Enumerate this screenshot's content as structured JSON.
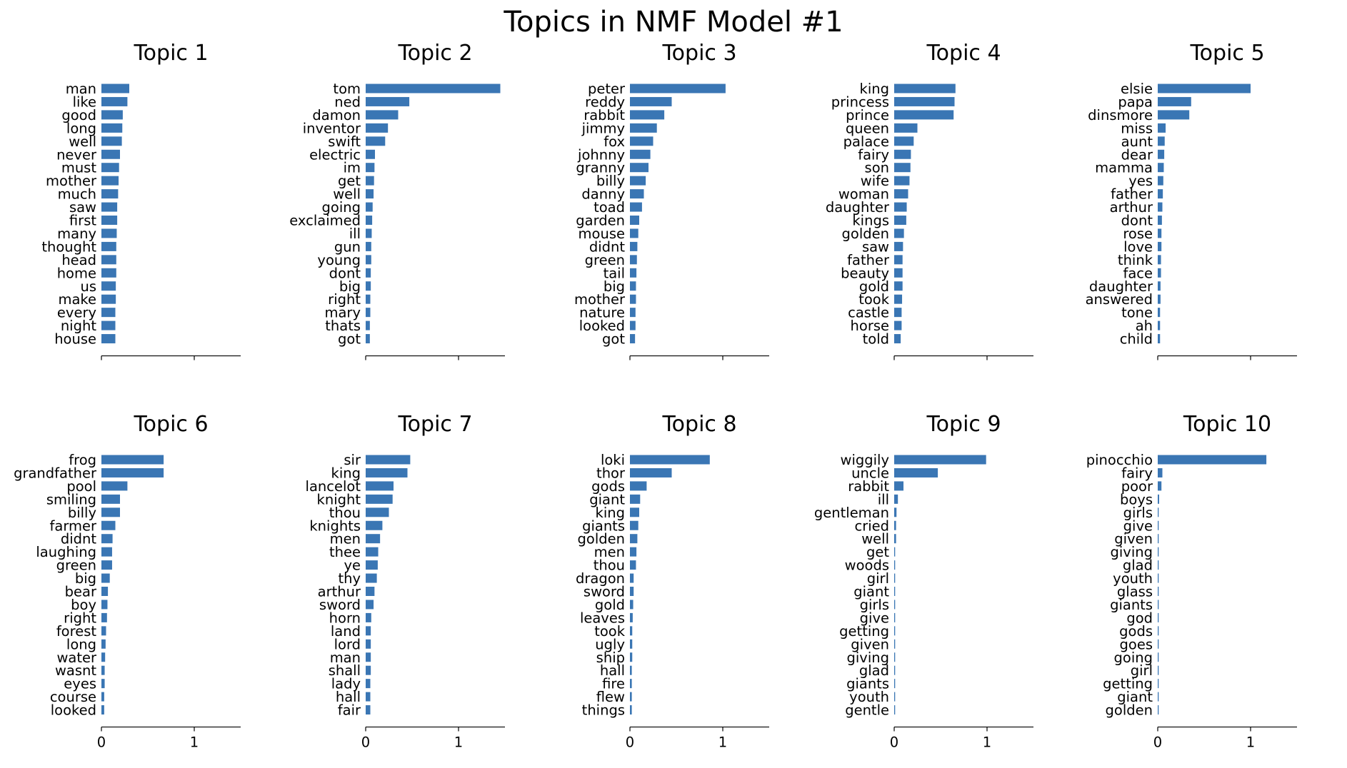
{
  "figure": {
    "title": "Topics in NMF Model #1"
  },
  "chart_data": [
    {
      "type": "bar",
      "orientation": "horizontal",
      "title": "Topic 1",
      "xlim": [
        0,
        1.5
      ],
      "xticks": [
        "0",
        "1"
      ],
      "categories": [
        "man",
        "like",
        "good",
        "long",
        "well",
        "never",
        "must",
        "mother",
        "much",
        "saw",
        "first",
        "many",
        "thought",
        "head",
        "home",
        "us",
        "make",
        "every",
        "night",
        "house"
      ],
      "values": [
        0.3,
        0.28,
        0.23,
        0.225,
        0.22,
        0.2,
        0.19,
        0.185,
        0.18,
        0.17,
        0.17,
        0.165,
        0.16,
        0.16,
        0.16,
        0.155,
        0.155,
        0.15,
        0.15,
        0.15
      ]
    },
    {
      "type": "bar",
      "orientation": "horizontal",
      "title": "Topic 2",
      "xlim": [
        0,
        1.5
      ],
      "xticks": [
        "0",
        "1"
      ],
      "categories": [
        "tom",
        "ned",
        "damon",
        "inventor",
        "swift",
        "electric",
        "im",
        "get",
        "well",
        "going",
        "exclaimed",
        "ill",
        "gun",
        "young",
        "dont",
        "big",
        "right",
        "mary",
        "thats",
        "got"
      ],
      "values": [
        1.45,
        0.47,
        0.35,
        0.24,
        0.21,
        0.1,
        0.095,
        0.09,
        0.085,
        0.075,
        0.07,
        0.065,
        0.06,
        0.06,
        0.055,
        0.055,
        0.05,
        0.05,
        0.045,
        0.045
      ]
    },
    {
      "type": "bar",
      "orientation": "horizontal",
      "title": "Topic 3",
      "xlim": [
        0,
        1.5
      ],
      "xticks": [
        "0",
        "1"
      ],
      "categories": [
        "peter",
        "reddy",
        "rabbit",
        "jimmy",
        "fox",
        "johnny",
        "granny",
        "billy",
        "danny",
        "toad",
        "garden",
        "mouse",
        "didnt",
        "green",
        "tail",
        "big",
        "mother",
        "nature",
        "looked",
        "got"
      ],
      "values": [
        1.03,
        0.45,
        0.37,
        0.29,
        0.25,
        0.22,
        0.2,
        0.17,
        0.15,
        0.13,
        0.1,
        0.09,
        0.08,
        0.075,
        0.07,
        0.065,
        0.065,
        0.06,
        0.06,
        0.055
      ]
    },
    {
      "type": "bar",
      "orientation": "horizontal",
      "title": "Topic 4",
      "xlim": [
        0,
        1.5
      ],
      "xticks": [
        "0",
        "1"
      ],
      "categories": [
        "king",
        "princess",
        "prince",
        "queen",
        "palace",
        "fairy",
        "son",
        "wife",
        "woman",
        "daughter",
        "kings",
        "golden",
        "saw",
        "father",
        "beauty",
        "gold",
        "took",
        "castle",
        "horse",
        "told"
      ],
      "values": [
        0.66,
        0.65,
        0.64,
        0.25,
        0.21,
        0.18,
        0.175,
        0.165,
        0.15,
        0.135,
        0.13,
        0.105,
        0.095,
        0.09,
        0.09,
        0.09,
        0.085,
        0.08,
        0.08,
        0.07
      ]
    },
    {
      "type": "bar",
      "orientation": "horizontal",
      "title": "Topic 5",
      "xlim": [
        0,
        1.5
      ],
      "xticks": [
        "0",
        "1"
      ],
      "categories": [
        "elsie",
        "papa",
        "dinsmore",
        "miss",
        "aunt",
        "dear",
        "mamma",
        "yes",
        "father",
        "arthur",
        "dont",
        "rose",
        "love",
        "think",
        "face",
        "daughter",
        "answered",
        "tone",
        "ah",
        "child"
      ],
      "values": [
        1.0,
        0.36,
        0.34,
        0.085,
        0.075,
        0.07,
        0.065,
        0.06,
        0.055,
        0.05,
        0.045,
        0.04,
        0.04,
        0.035,
        0.035,
        0.03,
        0.03,
        0.025,
        0.025,
        0.025
      ]
    },
    {
      "type": "bar",
      "orientation": "horizontal",
      "title": "Topic 6",
      "xlim": [
        0,
        1.5
      ],
      "xticks": [
        "0",
        "1"
      ],
      "categories": [
        "frog",
        "grandfather",
        "pool",
        "smiling",
        "billy",
        "farmer",
        "didnt",
        "laughing",
        "green",
        "big",
        "bear",
        "boy",
        "right",
        "forest",
        "long",
        "water",
        "wasnt",
        "eyes",
        "course",
        "looked"
      ],
      "values": [
        0.67,
        0.67,
        0.28,
        0.2,
        0.2,
        0.15,
        0.12,
        0.115,
        0.115,
        0.09,
        0.07,
        0.065,
        0.06,
        0.05,
        0.045,
        0.04,
        0.035,
        0.035,
        0.03,
        0.03
      ]
    },
    {
      "type": "bar",
      "orientation": "horizontal",
      "title": "Topic 7",
      "xlim": [
        0,
        1.5
      ],
      "xticks": [
        "0",
        "1"
      ],
      "categories": [
        "sir",
        "king",
        "lancelot",
        "knight",
        "thou",
        "knights",
        "men",
        "thee",
        "ye",
        "thy",
        "arthur",
        "sword",
        "horn",
        "land",
        "lord",
        "man",
        "shall",
        "lady",
        "hall",
        "fair"
      ],
      "values": [
        0.48,
        0.45,
        0.3,
        0.29,
        0.25,
        0.18,
        0.155,
        0.135,
        0.13,
        0.12,
        0.095,
        0.085,
        0.06,
        0.055,
        0.055,
        0.055,
        0.055,
        0.05,
        0.05,
        0.05
      ]
    },
    {
      "type": "bar",
      "orientation": "horizontal",
      "title": "Topic 8",
      "xlim": [
        0,
        1.5
      ],
      "xticks": [
        "0",
        "1"
      ],
      "categories": [
        "loki",
        "thor",
        "gods",
        "giant",
        "king",
        "giants",
        "golden",
        "men",
        "thou",
        "dragon",
        "sword",
        "gold",
        "leaves",
        "took",
        "ugly",
        "ship",
        "hall",
        "fire",
        "flew",
        "things"
      ],
      "values": [
        0.86,
        0.45,
        0.18,
        0.11,
        0.1,
        0.09,
        0.08,
        0.07,
        0.065,
        0.04,
        0.04,
        0.035,
        0.03,
        0.025,
        0.025,
        0.025,
        0.02,
        0.02,
        0.02,
        0.02
      ]
    },
    {
      "type": "bar",
      "orientation": "horizontal",
      "title": "Topic 9",
      "xlim": [
        0,
        1.5
      ],
      "xticks": [
        "0",
        "1"
      ],
      "categories": [
        "wiggily",
        "uncle",
        "rabbit",
        "ill",
        "gentleman",
        "cried",
        "well",
        "get",
        "woods",
        "girl",
        "giant",
        "girls",
        "give",
        "getting",
        "given",
        "giving",
        "glad",
        "giants",
        "youth",
        "gentle"
      ],
      "values": [
        0.99,
        0.47,
        0.1,
        0.04,
        0.025,
        0.02,
        0.02,
        0.01,
        0.01,
        0.01,
        0.01,
        0.01,
        0.01,
        0.01,
        0.01,
        0.01,
        0.01,
        0.01,
        0.01,
        0.01
      ]
    },
    {
      "type": "bar",
      "orientation": "horizontal",
      "title": "Topic 10",
      "xlim": [
        0,
        1.5
      ],
      "xticks": [
        "0",
        "1"
      ],
      "categories": [
        "pinocchio",
        "fairy",
        "poor",
        "boys",
        "girls",
        "give",
        "given",
        "giving",
        "glad",
        "youth",
        "glass",
        "giants",
        "god",
        "gods",
        "goes",
        "going",
        "girl",
        "getting",
        "giant",
        "golden"
      ],
      "values": [
        1.17,
        0.05,
        0.04,
        0.015,
        0.01,
        0.01,
        0.01,
        0.01,
        0.01,
        0.01,
        0.01,
        0.01,
        0.01,
        0.01,
        0.01,
        0.01,
        0.01,
        0.01,
        0.01,
        0.01
      ]
    }
  ],
  "colors": {
    "bar": "#3a76b4",
    "axis": "#000000"
  }
}
